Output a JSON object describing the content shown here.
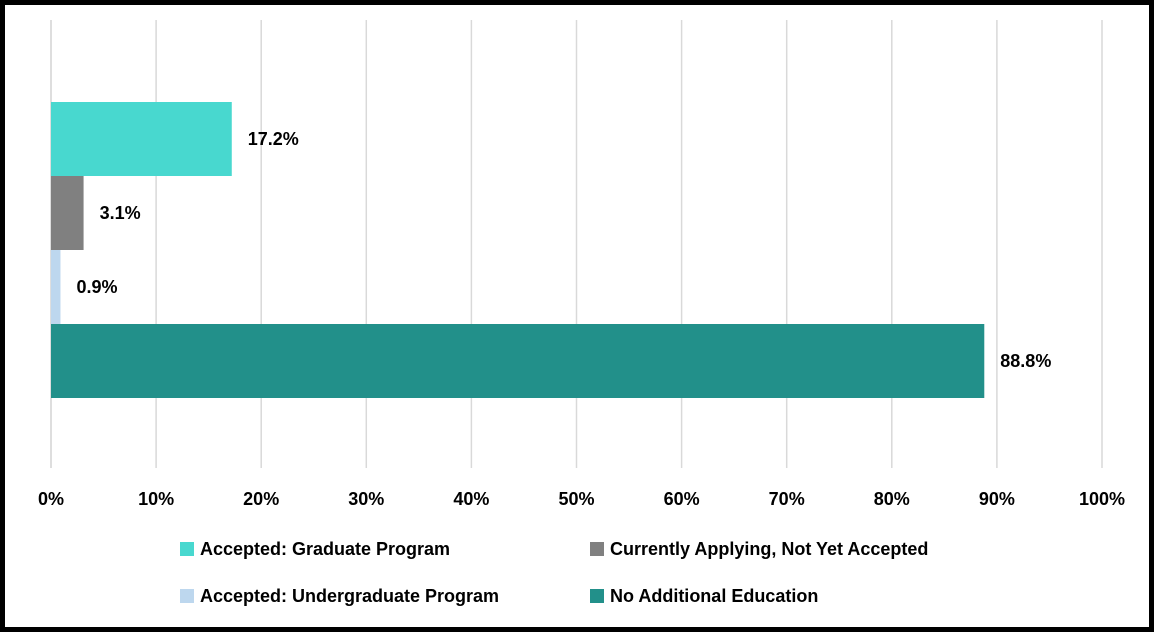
{
  "chart_data": {
    "type": "bar",
    "orientation": "horizontal",
    "title": "",
    "xlabel": "",
    "ylabel": "",
    "xlim": [
      0,
      100
    ],
    "x_ticks": [
      "0%",
      "10%",
      "20%",
      "30%",
      "40%",
      "50%",
      "60%",
      "70%",
      "80%",
      "90%",
      "100%"
    ],
    "grid": "vertical",
    "legend_position": "bottom",
    "series": [
      {
        "name": "Accepted: Graduate Program",
        "value": 17.2,
        "label": "17.2%",
        "color": "#48d8cf"
      },
      {
        "name": "Currently Applying, Not Yet Accepted",
        "value": 3.1,
        "label": "3.1%",
        "color": "#808080"
      },
      {
        "name": "Accepted: Undergraduate Program",
        "value": 0.9,
        "label": "0.9%",
        "color": "#bdd7ee"
      },
      {
        "name": "No Additional Education",
        "value": 88.8,
        "label": "88.8%",
        "color": "#22908a"
      }
    ]
  }
}
